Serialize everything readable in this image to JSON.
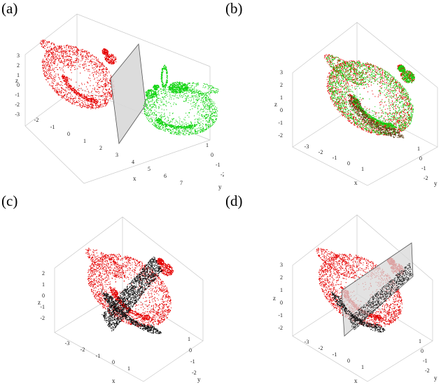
{
  "colors": {
    "red": "#e60000",
    "green": "#11d411",
    "black": "#111111",
    "plane_fill": "#d8d8d8",
    "plane_stroke": "#555555",
    "frame": "#c8c8c8"
  },
  "panels": [
    {
      "label": "(a)",
      "content": "two-teapot-point-clouds-separated-by-plane",
      "axes": {
        "z_label": "z",
        "x_label": "x",
        "y_label": "y",
        "z_ticks": [
          "3",
          "2",
          "1",
          "0",
          "-1",
          "-2",
          "-3"
        ],
        "x_ticks": [
          "-2",
          "-1",
          "0",
          "1",
          "2",
          "3",
          "4",
          "5",
          "6",
          "7"
        ],
        "y_ticks": [
          "1",
          "0",
          "-1",
          "-2"
        ]
      }
    },
    {
      "label": "(b)",
      "content": "overlaid-teapot-point-clouds",
      "axes": {
        "z_label": "z",
        "x_label": "x",
        "y_label": "y",
        "z_ticks": [
          "3",
          "2",
          "1",
          "0",
          "-1",
          "-2"
        ],
        "x_ticks": [
          "-3",
          "-2",
          "-1",
          "0",
          "1"
        ],
        "y_ticks": [
          "1",
          "0",
          "-1",
          "-2"
        ]
      }
    },
    {
      "label": "(c)",
      "content": "teapot-point-cloud-with-dense-black-slice",
      "axes": {
        "z_label": "z",
        "x_label": "x",
        "y_label": "y",
        "z_ticks": [
          "2",
          "1",
          "0",
          "-1",
          "-2"
        ],
        "x_ticks": [
          "-3",
          "-2",
          "-1",
          "0",
          "1"
        ],
        "y_ticks": [
          "1",
          "0",
          "-1",
          "-2"
        ]
      }
    },
    {
      "label": "(d)",
      "content": "teapot-point-cloud-with-cutting-plane",
      "axes": {
        "z_label": "z",
        "x_label": "x",
        "y_label": "y",
        "z_ticks": [
          "3",
          "2",
          "1",
          "0",
          "-1",
          "-2"
        ],
        "x_ticks": [
          "-3",
          "-2",
          "-1",
          "0",
          "1"
        ],
        "y_ticks": [
          "1",
          "0",
          "-1",
          "-2"
        ]
      }
    }
  ]
}
